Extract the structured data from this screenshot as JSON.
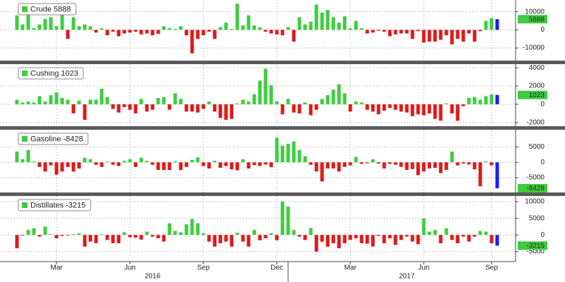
{
  "colors": {
    "positive": "#3fcc3f",
    "negative": "#dd1a1a",
    "latest": "#1c1cf0"
  },
  "chart_data": [
    {
      "type": "bar",
      "name": "Crude",
      "grid": true,
      "ylim": [
        -17000,
        16500
      ],
      "yticks": [
        -10000,
        0,
        10000
      ],
      "values": [
        8000,
        3000,
        10000,
        1000,
        3000,
        6000,
        7000,
        2000,
        9000,
        -5000,
        7000,
        2000,
        3000,
        2000,
        -1500,
        1000,
        -3000,
        -1000,
        -3500,
        -2000,
        -1500,
        -1000,
        -2500,
        -2000,
        -3000,
        -2200,
        2000,
        1000,
        500,
        2000,
        -3000,
        -13000,
        -5000,
        -3000,
        -1000,
        -5000,
        1500,
        4000,
        500,
        14500,
        2500,
        8000,
        2500,
        1500,
        -1000,
        -2000,
        -2500,
        -3000,
        1500,
        -6500,
        7000,
        3000,
        4500,
        14000,
        9500,
        11000,
        7000,
        4000,
        7500,
        800,
        5000,
        1000,
        -2000,
        -1500,
        -500,
        -1000,
        -3500,
        -2500,
        -2000,
        -2000,
        -5000,
        -700,
        -7000,
        -6500,
        -6500,
        -5500,
        -3000,
        -8000,
        -5000,
        -6500,
        -2000,
        -6500,
        -700,
        5000,
        6500,
        5888
      ]
    },
    {
      "type": "bar",
      "name": "Cushing",
      "grid": true,
      "ylim": [
        -2400,
        4400
      ],
      "yticks": [
        -2000,
        0,
        2000,
        4000
      ],
      "values": [
        500,
        200,
        300,
        200,
        900,
        300,
        1000,
        1300,
        700,
        500,
        -1000,
        400,
        -1700,
        500,
        500,
        1700,
        800,
        -500,
        -900,
        -300,
        -600,
        -1000,
        600,
        -800,
        -600,
        700,
        800,
        -600,
        1200,
        600,
        -800,
        -800,
        -900,
        -500,
        300,
        -800,
        -1500,
        -1700,
        -1600,
        100,
        500,
        300,
        1100,
        2600,
        3900,
        2100,
        300,
        -1100,
        600,
        -900,
        -1000,
        200,
        -1200,
        -600,
        600,
        1000,
        1600,
        2200,
        1200,
        -800,
        300,
        200,
        -600,
        -800,
        -1100,
        -700,
        -400,
        -600,
        -800,
        -900,
        -1300,
        -1100,
        -1200,
        -1000,
        -1600,
        -1800,
        100,
        -1000,
        -1800,
        -200,
        700,
        800,
        500,
        900,
        1100,
        1023
      ]
    },
    {
      "type": "bar",
      "name": "Gasoline",
      "grid": true,
      "ylim": [
        -9800,
        10600
      ],
      "yticks": [
        -5000,
        0,
        5000
      ],
      "values": [
        3500,
        1000,
        4000,
        300,
        -1500,
        -3000,
        -1000,
        -4000,
        -3000,
        -1500,
        -3000,
        -2000,
        1500,
        1000,
        -800,
        -1500,
        200,
        -800,
        -1200,
        500,
        1000,
        -1500,
        1500,
        500,
        -800,
        -2500,
        -2500,
        -2500,
        300,
        -2500,
        -1500,
        800,
        1600,
        -1200,
        -2000,
        500,
        -1800,
        -1200,
        -2300,
        -2600,
        1000,
        -2000,
        -900,
        -1200,
        -700,
        -1600,
        8000,
        5400,
        6000,
        6800,
        4000,
        2000,
        -800,
        -3000,
        -6200,
        -2000,
        -2000,
        -3000,
        -1500,
        -1000,
        1800,
        -500,
        -300,
        1000,
        -400,
        -2000,
        -500,
        -800,
        -1500,
        -2500,
        -2200,
        -4200,
        -3000,
        -2000,
        -1800,
        -3500,
        -2500,
        3500,
        -1000,
        -400,
        -700,
        -2300,
        -7800,
        300,
        -1000,
        -8428
      ]
    },
    {
      "type": "bar",
      "name": "Distillates",
      "grid": true,
      "ylim": [
        -8000,
        11700
      ],
      "yticks": [
        -5000,
        0,
        5000,
        10000
      ],
      "values": [
        -4000,
        -200,
        1500,
        2000,
        -500,
        2500,
        200,
        -1000,
        -300,
        -200,
        200,
        500,
        -3500,
        -2000,
        -2500,
        200,
        -1500,
        -2500,
        -2500,
        800,
        -700,
        -800,
        -1400,
        1000,
        -500,
        -1000,
        -2000,
        3500,
        1200,
        800,
        3200,
        4800,
        3500,
        500,
        -2000,
        -3500,
        -2500,
        -2000,
        -3500,
        700,
        -2000,
        -3500,
        1500,
        -1600,
        -1000,
        500,
        -1600,
        10000,
        8500,
        1500,
        -500,
        -1500,
        2100,
        -5000,
        -2000,
        -3500,
        -2500,
        -4000,
        -2500,
        -1500,
        -1000,
        -2500,
        -2600,
        -3500,
        -300,
        -2500,
        -1000,
        -3000,
        -1500,
        -500,
        -2000,
        -2800,
        5000,
        1000,
        1500,
        -2500,
        2000,
        -1500,
        -2500,
        -500,
        -2000,
        -500,
        1200,
        1000,
        -2500,
        -3215
      ]
    }
  ],
  "x_axis": {
    "categories": [
      null,
      null,
      null,
      null,
      null,
      null,
      null,
      "Mar",
      null,
      null,
      null,
      null,
      null,
      null,
      null,
      null,
      null,
      null,
      null,
      null,
      "Jun",
      null,
      null,
      null,
      null,
      null,
      null,
      null,
      null,
      null,
      null,
      null,
      null,
      "Sep",
      null,
      null,
      null,
      null,
      null,
      null,
      null,
      null,
      null,
      null,
      null,
      null,
      "Dec",
      null,
      null,
      null,
      null,
      null,
      null,
      null,
      null,
      null,
      null,
      null,
      null,
      "Mar",
      null,
      null,
      null,
      null,
      null,
      null,
      null,
      null,
      null,
      null,
      null,
      null,
      "Jun",
      null,
      null,
      null,
      null,
      null,
      null,
      null,
      null,
      null,
      null,
      null,
      "Sep",
      null
    ],
    "years": [
      null,
      null,
      null,
      null,
      null,
      null,
      null,
      null,
      null,
      null,
      null,
      null,
      null,
      null,
      null,
      null,
      null,
      null,
      null,
      null,
      null,
      null,
      null,
      null,
      "2016",
      null,
      null,
      null,
      null,
      null,
      null,
      null,
      null,
      null,
      null,
      null,
      null,
      null,
      null,
      null,
      null,
      null,
      null,
      null,
      null,
      null,
      null,
      null,
      null,
      null,
      null,
      null,
      null,
      null,
      null,
      null,
      null,
      null,
      null,
      null,
      null,
      null,
      null,
      null,
      null,
      null,
      null,
      null,
      null,
      "2017",
      null,
      null,
      null,
      null,
      null,
      null,
      null,
      null,
      null,
      null,
      null,
      null,
      null,
      null,
      null,
      null
    ]
  }
}
